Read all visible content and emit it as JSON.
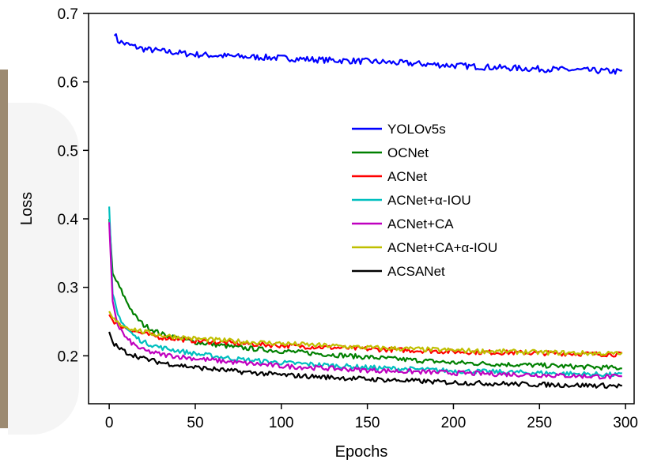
{
  "chart_data": {
    "type": "line",
    "title": "",
    "xlabel": "Epochs",
    "ylabel": "Loss",
    "xlim": [
      -12,
      305
    ],
    "ylim": [
      0.13,
      0.7
    ],
    "xticks": [
      0,
      50,
      100,
      150,
      200,
      250,
      300
    ],
    "yticks": [
      0.2,
      0.3,
      0.4,
      0.5,
      0.6,
      0.7
    ],
    "ytick_labels": [
      "0.2",
      "0.3",
      "0.4",
      "0.5",
      "0.6",
      "0.7"
    ],
    "grid": false,
    "legend_position": "center-right",
    "series": [
      {
        "name": "YOLOv5s",
        "color": "#0000ff",
        "x": [
          3,
          5,
          10,
          20,
          30,
          50,
          75,
          100,
          125,
          150,
          175,
          200,
          225,
          250,
          275,
          298
        ],
        "y": [
          0.672,
          0.66,
          0.655,
          0.648,
          0.645,
          0.64,
          0.637,
          0.635,
          0.632,
          0.63,
          0.627,
          0.624,
          0.621,
          0.619,
          0.617,
          0.615
        ]
      },
      {
        "name": "OCNet",
        "color": "#008000",
        "x": [
          0,
          2,
          5,
          10,
          15,
          20,
          30,
          50,
          75,
          100,
          150,
          200,
          250,
          298
        ],
        "y": [
          0.4,
          0.32,
          0.305,
          0.28,
          0.258,
          0.245,
          0.232,
          0.22,
          0.212,
          0.207,
          0.198,
          0.19,
          0.186,
          0.182
        ]
      },
      {
        "name": "ACNet",
        "color": "#ff0000",
        "x": [
          0,
          2,
          5,
          10,
          20,
          30,
          50,
          75,
          100,
          150,
          200,
          250,
          298
        ],
        "y": [
          0.26,
          0.252,
          0.246,
          0.24,
          0.232,
          0.227,
          0.222,
          0.218,
          0.215,
          0.21,
          0.206,
          0.204,
          0.202
        ]
      },
      {
        "name": "ACNet+α-IOU",
        "color": "#00bfbf",
        "x": [
          0,
          2,
          5,
          10,
          15,
          20,
          30,
          50,
          75,
          100,
          150,
          200,
          250,
          298
        ],
        "y": [
          0.418,
          0.29,
          0.26,
          0.24,
          0.228,
          0.22,
          0.212,
          0.203,
          0.195,
          0.19,
          0.183,
          0.178,
          0.175,
          0.172
        ]
      },
      {
        "name": "ACNet+CA",
        "color": "#bf00bf",
        "x": [
          0,
          2,
          5,
          10,
          15,
          20,
          30,
          50,
          75,
          100,
          150,
          200,
          250,
          298
        ],
        "y": [
          0.395,
          0.28,
          0.245,
          0.225,
          0.215,
          0.208,
          0.202,
          0.196,
          0.19,
          0.185,
          0.179,
          0.175,
          0.172,
          0.169
        ]
      },
      {
        "name": "ACNet+CA+α-IOU",
        "color": "#bfbf00",
        "x": [
          0,
          2,
          5,
          10,
          20,
          30,
          50,
          75,
          100,
          150,
          200,
          250,
          298
        ],
        "y": [
          0.265,
          0.255,
          0.248,
          0.242,
          0.235,
          0.23,
          0.225,
          0.221,
          0.218,
          0.212,
          0.208,
          0.205,
          0.203
        ]
      },
      {
        "name": "ACSANet",
        "color": "#000000",
        "x": [
          0,
          2,
          5,
          10,
          20,
          30,
          50,
          75,
          100,
          150,
          200,
          250,
          298
        ],
        "y": [
          0.235,
          0.22,
          0.212,
          0.205,
          0.196,
          0.19,
          0.183,
          0.177,
          0.172,
          0.166,
          0.161,
          0.158,
          0.156
        ]
      }
    ]
  }
}
